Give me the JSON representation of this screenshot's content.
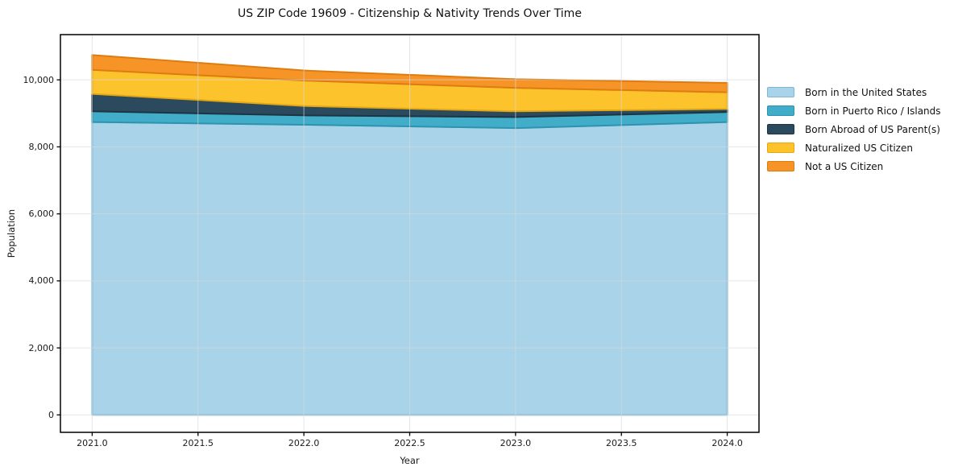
{
  "figure": {
    "background": "#ffffff",
    "plot_background": "#ffffff",
    "spine_color": "#000000",
    "gridline_color": "#d9d9d9"
  },
  "chart_data": {
    "type": "area",
    "stacked": true,
    "title": "US ZIP Code 19609 - Citizenship & Nativity Trends Over Time",
    "xlabel": "Year",
    "ylabel": "Population",
    "x": [
      2021,
      2022,
      2023,
      2024
    ],
    "x_tick_values": [
      2021,
      2021.5,
      2022,
      2022.5,
      2023,
      2023.5,
      2024
    ],
    "x_ticklabels": [
      "2021.0",
      "2021.5",
      "2022.0",
      "2022.5",
      "2023.0",
      "2023.5",
      "2024.0"
    ],
    "y_tick_values": [
      0,
      2000,
      4000,
      6000,
      8000,
      10000
    ],
    "y_ticklabels": [
      "0",
      "2,000",
      "4,000",
      "6,000",
      "8,000",
      "10,000"
    ],
    "xlim": [
      2020.85,
      2024.15
    ],
    "ylim": [
      -520,
      11350
    ],
    "grid": true,
    "legend_position": "outside-center-right",
    "series": [
      {
        "name": "Born in the United States",
        "color": "#a8d3e8",
        "edge_color": "#7cb8d6",
        "values": [
          8740,
          8660,
          8560,
          8740
        ]
      },
      {
        "name": "Born in Puerto Rico / Islands",
        "color": "#42adc8",
        "edge_color": "#2d93ae",
        "values": [
          320,
          280,
          330,
          300
        ]
      },
      {
        "name": "Born Abroad of US Parent(s)",
        "color": "#2b4a5e",
        "edge_color": "#1d3543",
        "values": [
          520,
          280,
          170,
          90
        ]
      },
      {
        "name": "Naturalized US Citizen",
        "color": "#fdc32d",
        "edge_color": "#e2a712",
        "values": [
          720,
          760,
          700,
          500
        ]
      },
      {
        "name": "Not a US Citizen",
        "color": "#f79428",
        "edge_color": "#dd7c10",
        "values": [
          440,
          300,
          260,
          280
        ]
      }
    ]
  }
}
